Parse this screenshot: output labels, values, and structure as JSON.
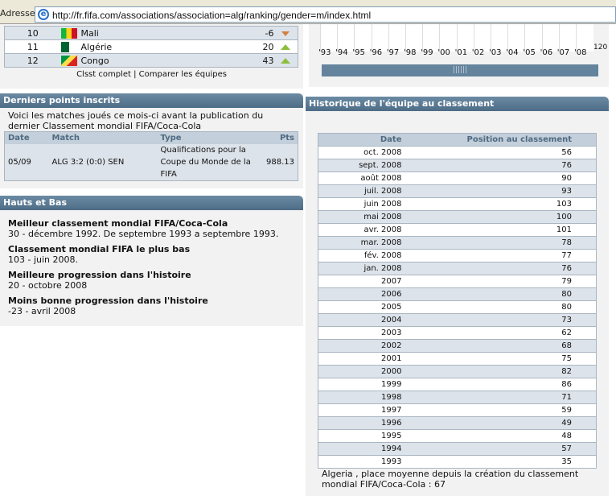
{
  "browser": {
    "address_label": "Adresse",
    "url": "http://fr.fifa.com/associations/association=alg/ranking/gender=m/index.html"
  },
  "ranking_rows": [
    {
      "rank": "10",
      "team": "Mali",
      "pts": "-6",
      "trend": "down",
      "flag": [
        "#14b53a",
        "#fcd116",
        "#ce1126"
      ]
    },
    {
      "rank": "11",
      "team": "Algérie",
      "pts": "20",
      "trend": "up",
      "flag": [
        "#006233",
        "#ffffff"
      ]
    },
    {
      "rank": "12",
      "team": "Congo",
      "pts": "43",
      "trend": "up",
      "flag": [
        "#009543",
        "#fbde4a",
        "#dc241f"
      ]
    }
  ],
  "links": {
    "full": "Clsst complet",
    "compare": "Comparer les équipes"
  },
  "chart_strip": {
    "years": [
      "'93",
      "'94",
      "'95",
      "'96",
      "'97",
      "'98",
      "'99",
      "'00",
      "'01",
      "'02",
      "'03",
      "'04",
      "'05",
      "'06",
      "'07",
      "'08"
    ],
    "right_label": "120"
  },
  "latest": {
    "title": "Derniers points inscrits",
    "intro": "Voici les matches joués ce mois-ci avant la publication du dernier Classement mondial FIFA/Coca-Cola",
    "headers": [
      "Date",
      "Match",
      "Type",
      "Pts"
    ],
    "rows": [
      {
        "date": "05/09",
        "match": "ALG 3:2 (0:0) SEN",
        "type": "Qualifications pour la Coupe du Monde de la FIFA",
        "pts": "988.13"
      }
    ]
  },
  "highs": {
    "title": "Hauts et Bas",
    "items": [
      {
        "label": "Meilleur classement mondial FIFA/Coca-Cola",
        "value": "30 - décembre 1992. De septembre 1993 a septembre 1993."
      },
      {
        "label": "Classement mondial FIFA le plus bas",
        "value": "103 - juin 2008."
      },
      {
        "label": "Meilleure progression dans l'histoire",
        "value": "20 - octobre 2008"
      },
      {
        "label": "Moins bonne progression dans l'histoire",
        "value": "-23 - avril 2008"
      }
    ]
  },
  "history": {
    "title": "Historique de l'équipe au classement",
    "headers": [
      "Date",
      "Position au classement"
    ],
    "rows": [
      [
        "oct. 2008",
        "56"
      ],
      [
        "sept. 2008",
        "76"
      ],
      [
        "août 2008",
        "90"
      ],
      [
        "juil. 2008",
        "93"
      ],
      [
        "juin 2008",
        "103"
      ],
      [
        "mai 2008",
        "100"
      ],
      [
        "avr. 2008",
        "101"
      ],
      [
        "mar. 2008",
        "78"
      ],
      [
        "fév. 2008",
        "77"
      ],
      [
        "jan. 2008",
        "76"
      ],
      [
        "2007",
        "79"
      ],
      [
        "2006",
        "80"
      ],
      [
        "2005",
        "80"
      ],
      [
        "2004",
        "73"
      ],
      [
        "2003",
        "62"
      ],
      [
        "2002",
        "68"
      ],
      [
        "2001",
        "75"
      ],
      [
        "2000",
        "82"
      ],
      [
        "1999",
        "86"
      ],
      [
        "1998",
        "71"
      ],
      [
        "1997",
        "59"
      ],
      [
        "1996",
        "49"
      ],
      [
        "1995",
        "48"
      ],
      [
        "1994",
        "57"
      ],
      [
        "1993",
        "35"
      ]
    ],
    "average": "Algeria , place moyenne depuis la création du classement mondial FIFA/Coca-Cola : 67"
  }
}
